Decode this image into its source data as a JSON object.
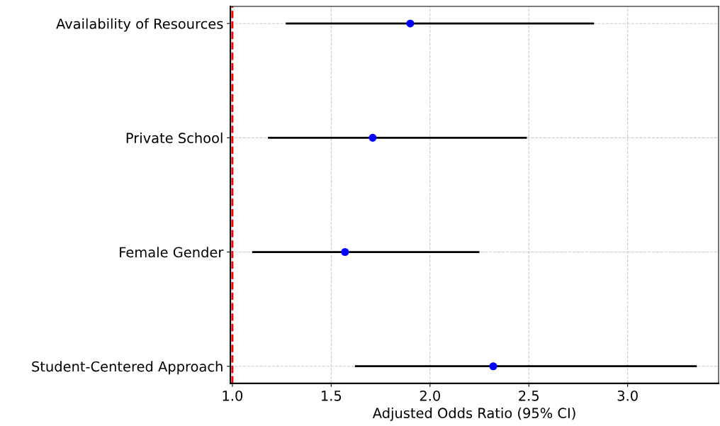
{
  "chart_data": {
    "type": "scatter",
    "orientation": "horizontal",
    "xlabel": "Adjusted Odds Ratio (95% CI)",
    "categories": [
      "Availability of Resources",
      "Private School",
      "Female Gender",
      "Student-Centered Approach"
    ],
    "series": [
      {
        "color": "#0000ff",
        "values": [
          1.9,
          1.71,
          1.57,
          2.32
        ],
        "errors": [
          [
            1.27,
            2.83
          ],
          [
            1.18,
            2.49
          ],
          [
            1.1,
            2.25
          ],
          [
            1.62,
            3.35
          ]
        ]
      }
    ],
    "xlim": [
      0.99,
      3.46
    ],
    "xticks": [
      {
        "value": 1.0,
        "label": "1.0"
      },
      {
        "value": 1.5,
        "label": "1.5"
      },
      {
        "value": 2.0,
        "label": "2.0"
      },
      {
        "value": 2.5,
        "label": "2.5"
      },
      {
        "value": 3.0,
        "label": "3.0"
      }
    ],
    "ref_lines": [
      {
        "axis": "x",
        "value": 1.0,
        "color": "#ff0000",
        "line_style": "dashed"
      }
    ],
    "grid": true,
    "marker": "circle"
  }
}
